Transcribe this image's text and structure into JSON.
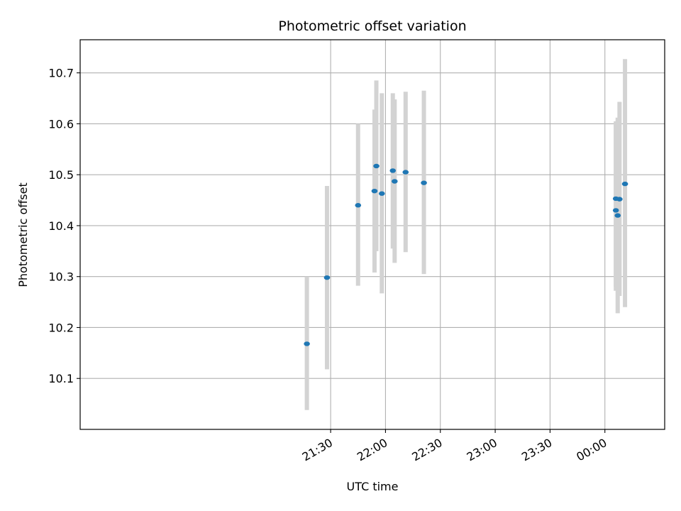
{
  "chart_data": {
    "type": "scatter",
    "title": "Photometric offset variation",
    "xlabel": "UTC time",
    "ylabel": "Photometric offset",
    "grid": true,
    "xlim_minutes": [
      -167,
      152.7
    ],
    "ylim": [
      10.0,
      10.765
    ],
    "x_ticks": [
      "21:30",
      "22:00",
      "22:30",
      "23:00",
      "23:30",
      "00:00"
    ],
    "y_ticks": [
      10.1,
      10.2,
      10.3,
      10.4,
      10.5,
      10.6,
      10.7
    ],
    "marker_color": "#1f77b4",
    "errorbar_color": "#d3d3d3",
    "points": [
      {
        "t": "21:17",
        "y": 10.168,
        "lo": 10.038,
        "hi": 10.3
      },
      {
        "t": "21:28",
        "y": 10.298,
        "lo": 10.118,
        "hi": 10.478
      },
      {
        "t": "21:45",
        "y": 10.44,
        "lo": 10.282,
        "hi": 10.6
      },
      {
        "t": "21:54",
        "y": 10.468,
        "lo": 10.308,
        "hi": 10.628
      },
      {
        "t": "21:55",
        "y": 10.517,
        "lo": 10.35,
        "hi": 10.685
      },
      {
        "t": "21:58",
        "y": 10.463,
        "lo": 10.267,
        "hi": 10.66
      },
      {
        "t": "22:04",
        "y": 10.508,
        "lo": 10.355,
        "hi": 10.66
      },
      {
        "t": "22:05",
        "y": 10.487,
        "lo": 10.327,
        "hi": 10.648
      },
      {
        "t": "22:11",
        "y": 10.505,
        "lo": 10.348,
        "hi": 10.663
      },
      {
        "t": "22:21",
        "y": 10.484,
        "lo": 10.305,
        "hi": 10.665
      },
      {
        "t": "00:06",
        "y": 10.453,
        "lo": 10.272,
        "hi": 10.605
      },
      {
        "t": "00:06",
        "y": 10.43,
        "lo": 10.28,
        "hi": 10.598
      },
      {
        "t": "00:07",
        "y": 10.42,
        "lo": 10.228,
        "hi": 10.612
      },
      {
        "t": "00:08",
        "y": 10.452,
        "lo": 10.262,
        "hi": 10.643
      },
      {
        "t": "00:11",
        "y": 10.482,
        "lo": 10.24,
        "hi": 10.727
      }
    ]
  }
}
